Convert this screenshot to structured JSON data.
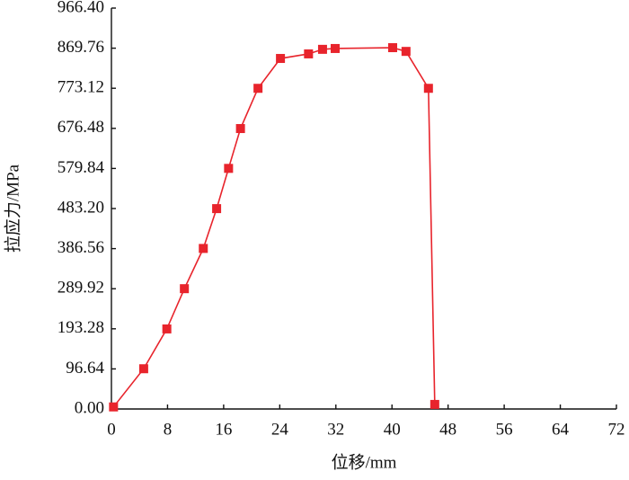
{
  "chart_data": {
    "type": "line",
    "x_label": "位移/mm",
    "y_label": "拉应力/MPa",
    "xlim": [
      0,
      72
    ],
    "xticks": [
      0,
      8,
      16,
      24,
      32,
      40,
      48,
      56,
      64,
      72
    ],
    "ylim": [
      0,
      966.4
    ],
    "yticks": [
      {
        "value": 0,
        "label": "0.00"
      },
      96.64,
      193.28,
      289.92,
      386.56,
      {
        "value": 483.2,
        "label": "483.20"
      },
      579.84,
      676.48,
      773.12,
      869.76,
      {
        "value": 966.4,
        "label": "966.40"
      }
    ],
    "series": [
      {
        "color": "#e8242c",
        "x": [
          0.3,
          4.6,
          7.9,
          10.4,
          13.1,
          15.0,
          16.7,
          18.4,
          20.9,
          24.1,
          28.1,
          30.1,
          31.9,
          40.1,
          42.0,
          45.2,
          46.1
        ],
        "values": [
          5,
          97,
          193,
          290,
          387,
          483,
          580,
          676,
          773,
          845,
          856,
          867,
          869,
          871,
          862,
          773,
          11
        ]
      }
    ]
  }
}
